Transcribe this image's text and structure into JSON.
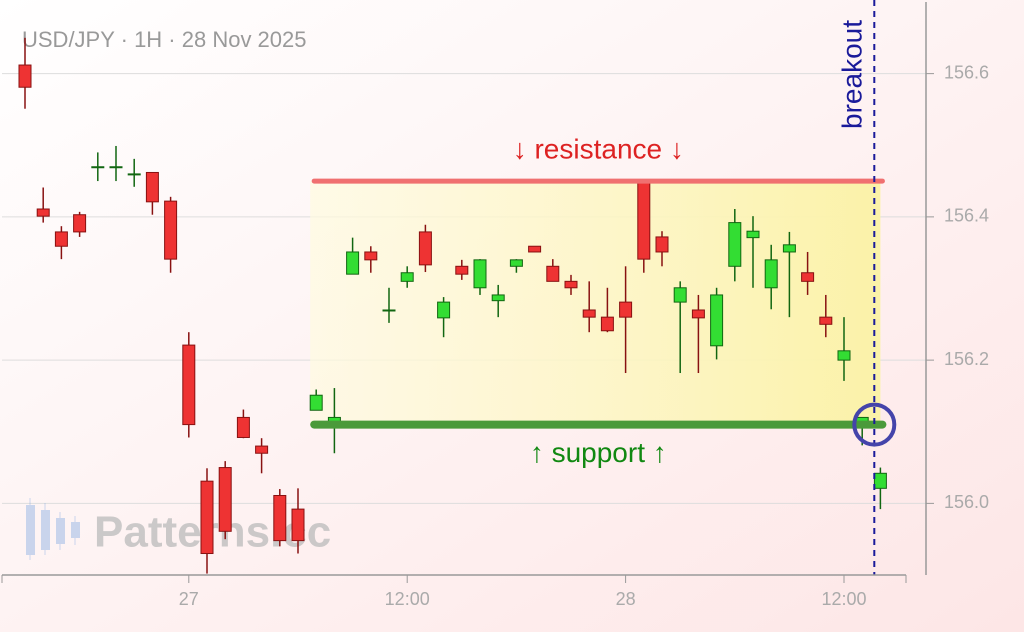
{
  "chart_data": {
    "type": "candlestick",
    "title": "USD/JPY · 1H · 28 Nov 2025",
    "watermark": "Patterns.cc",
    "categories": [
      null,
      null,
      null,
      null,
      null,
      null,
      null,
      null,
      null,
      "27",
      null,
      null,
      null,
      null,
      null,
      null,
      null,
      null,
      null,
      null,
      null,
      "12:00",
      null,
      null,
      null,
      null,
      null,
      null,
      null,
      null,
      null,
      null,
      null,
      "28",
      null,
      null,
      null,
      null,
      null,
      null,
      null,
      null,
      null,
      null,
      null,
      "12:00",
      null,
      null
    ],
    "open": [
      156.612,
      156.411,
      156.379,
      156.403,
      156.47,
      156.47,
      156.46,
      156.462,
      156.422,
      156.221,
      156.031,
      156.05,
      156.12,
      156.08,
      156.011,
      155.992,
      156.13,
      156.112,
      156.32,
      156.351,
      156.27,
      156.31,
      156.379,
      156.259,
      156.331,
      156.301,
      156.283,
      156.331,
      156.359,
      156.331,
      156.31,
      156.27,
      156.26,
      156.281,
      156.45,
      156.372,
      156.281,
      156.27,
      156.22,
      156.331,
      156.371,
      156.301,
      156.351,
      156.322,
      156.26,
      156.2,
      156.112,
      156.021
    ],
    "high": [
      156.65,
      156.441,
      156.387,
      156.407,
      156.49,
      156.499,
      156.481,
      156.462,
      156.428,
      156.239,
      156.049,
      156.059,
      156.131,
      156.091,
      156.02,
      156.021,
      156.159,
      156.161,
      156.371,
      156.359,
      156.301,
      156.331,
      156.389,
      156.288,
      156.34,
      156.341,
      156.305,
      156.341,
      156.359,
      156.341,
      156.319,
      156.31,
      156.301,
      156.331,
      156.45,
      156.38,
      156.31,
      156.291,
      156.301,
      156.411,
      156.401,
      156.361,
      156.379,
      156.351,
      156.291,
      156.26,
      156.12,
      156.05
    ],
    "low": [
      156.551,
      156.392,
      156.341,
      156.372,
      156.45,
      156.45,
      156.442,
      156.403,
      156.322,
      156.092,
      155.902,
      155.95,
      156.091,
      156.042,
      155.94,
      155.93,
      156.13,
      156.07,
      156.32,
      156.322,
      156.252,
      156.301,
      156.323,
      156.232,
      156.312,
      156.291,
      156.26,
      156.322,
      156.351,
      156.31,
      156.291,
      156.239,
      156.239,
      156.182,
      156.322,
      156.331,
      156.182,
      156.182,
      156.201,
      156.31,
      156.301,
      156.271,
      156.26,
      156.291,
      156.232,
      156.171,
      156.081,
      155.992
    ],
    "close": [
      156.581,
      156.401,
      156.359,
      156.379,
      156.47,
      156.47,
      156.46,
      156.421,
      156.341,
      156.11,
      155.93,
      155.961,
      156.092,
      156.07,
      155.948,
      155.948,
      156.151,
      156.12,
      156.351,
      156.34,
      156.27,
      156.322,
      156.333,
      156.281,
      156.32,
      156.34,
      156.291,
      156.34,
      156.351,
      156.31,
      156.301,
      156.26,
      156.241,
      156.26,
      156.341,
      156.351,
      156.301,
      156.259,
      156.291,
      156.392,
      156.38,
      156.34,
      156.361,
      156.31,
      156.25,
      156.213,
      156.12,
      156.042
    ],
    "up_color": "#33dd33",
    "down_color": "#ee3333",
    "ylim": [
      155.9,
      156.7
    ],
    "yticks": [
      {
        "value": 156.0,
        "label": "156.0"
      },
      {
        "value": 156.2,
        "label": "156.2"
      },
      {
        "value": 156.4,
        "label": "156.4"
      },
      {
        "value": 156.6,
        "label": "156.6"
      }
    ],
    "grid": true,
    "resistance": {
      "label": "↓ resistance ↓",
      "value": 156.45,
      "color": "#f07070"
    },
    "support": {
      "label": "↑ support ↑",
      "value": 156.11,
      "color": "#4a9a3a"
    },
    "breakout": {
      "label": "breakout",
      "color": "#1a1a9a"
    }
  }
}
